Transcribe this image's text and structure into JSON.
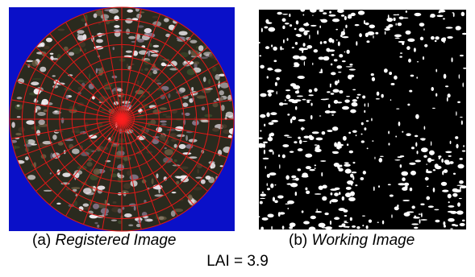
{
  "panels": [
    {
      "label": "(a)",
      "caption": "Registered Image"
    },
    {
      "label": "(b)",
      "caption": "Working Image"
    }
  ],
  "footer": "LAI = 3.9"
}
